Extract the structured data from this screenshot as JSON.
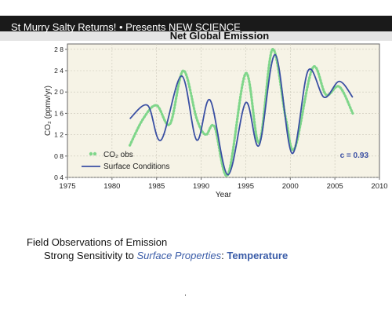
{
  "banner": {
    "text": "St Murry Salty Returns! • Presents NEW SCIENCE",
    "color": "#1a1a1a"
  },
  "chart_data": {
    "type": "line",
    "title": "Net Global Emission",
    "xlabel": "Year",
    "ylabel": "CO₂ (ppmv/yr)",
    "xlim": [
      1975,
      2010
    ],
    "ylim": [
      0.4,
      2.9
    ],
    "xticks": [
      1975,
      1980,
      1985,
      1990,
      1995,
      2000,
      2005,
      2010
    ],
    "yticks": [
      0.4,
      0.8,
      1.2,
      1.6,
      2.0,
      2.4,
      2.8
    ],
    "ytick_labels": [
      "0 4",
      "0 8",
      "1 2",
      "1 6",
      "2 0",
      "2 4",
      "2 8"
    ],
    "grid": true,
    "background": "#f6f3e6",
    "legend_placement": "bottom-left",
    "annotation": "c = 0.93",
    "series": [
      {
        "name": "CO₂ obs",
        "style": "dotted",
        "color": "#7fd68a",
        "x": [
          1982,
          1983.5,
          1985,
          1986.5,
          1988,
          1989.5,
          1990.5,
          1991.5,
          1993,
          1995,
          1996.5,
          1998,
          1999.5,
          2000.5,
          2002.5,
          2004,
          2005.5,
          2007
        ],
        "y": [
          1.0,
          1.5,
          1.75,
          1.4,
          2.4,
          1.5,
          1.2,
          1.35,
          0.45,
          2.35,
          1.05,
          2.8,
          1.5,
          0.95,
          2.45,
          1.95,
          2.1,
          1.6
        ]
      },
      {
        "name": "Surface Conditions",
        "style": "solid",
        "color": "#3a4fa3",
        "x": [
          1982,
          1984,
          1985.5,
          1987.8,
          1989.5,
          1991,
          1993,
          1995,
          1996.5,
          1998.3,
          2000.2,
          2002,
          2003.8,
          2005.5,
          2007
        ],
        "y": [
          1.5,
          1.75,
          1.1,
          2.3,
          1.1,
          1.85,
          0.45,
          1.8,
          1.0,
          2.7,
          0.85,
          2.4,
          1.9,
          2.2,
          1.9
        ]
      }
    ]
  },
  "caption": {
    "line1": "Field Observations of Emission",
    "line2_prefix": "Strong Sensitivity to ",
    "line2_emphasis": "Surface Properties",
    "line2_colon": ":  ",
    "line2_strong": "Temperature"
  }
}
